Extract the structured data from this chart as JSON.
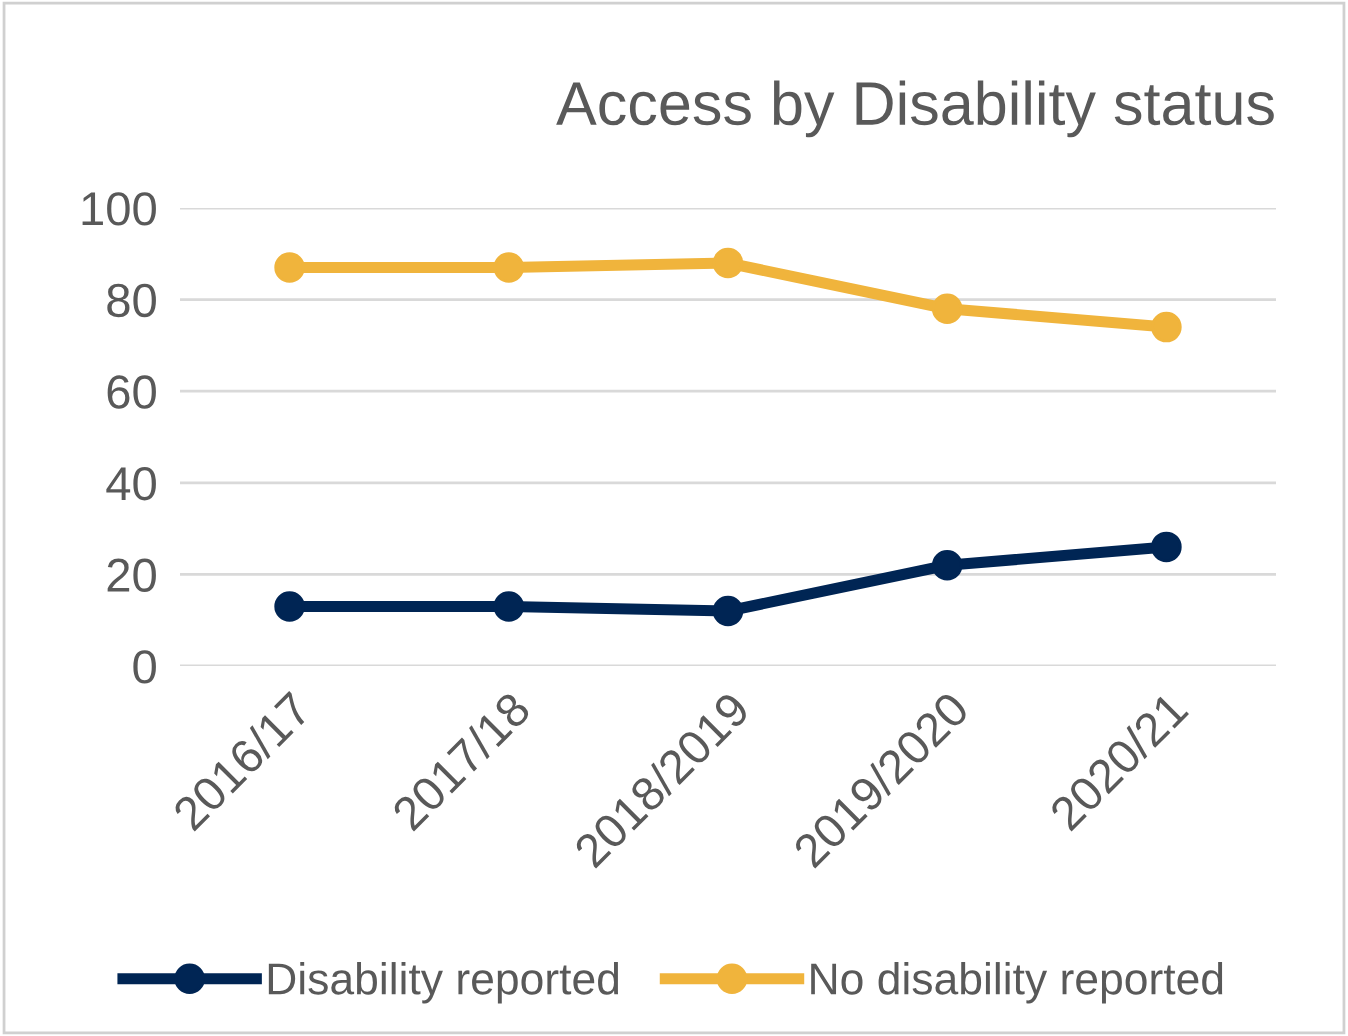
{
  "chart_data": {
    "type": "line",
    "title": "Access by Disability status",
    "categories": [
      "2016/17",
      "2017/18",
      "2018/2019",
      "2019/2020",
      "2020/21"
    ],
    "series": [
      {
        "name": "Disability reported",
        "color": "#002554",
        "values": [
          13,
          13,
          12,
          22,
          26
        ]
      },
      {
        "name": "No disability reported",
        "color": "#f0b43c",
        "values": [
          87,
          87,
          88,
          78,
          74
        ]
      }
    ],
    "ylim": [
      0,
      100
    ],
    "yticks": [
      0,
      20,
      40,
      60,
      80,
      100
    ],
    "grid": "y",
    "legend": "bottom",
    "marker": "circle",
    "line_style": "solid"
  }
}
